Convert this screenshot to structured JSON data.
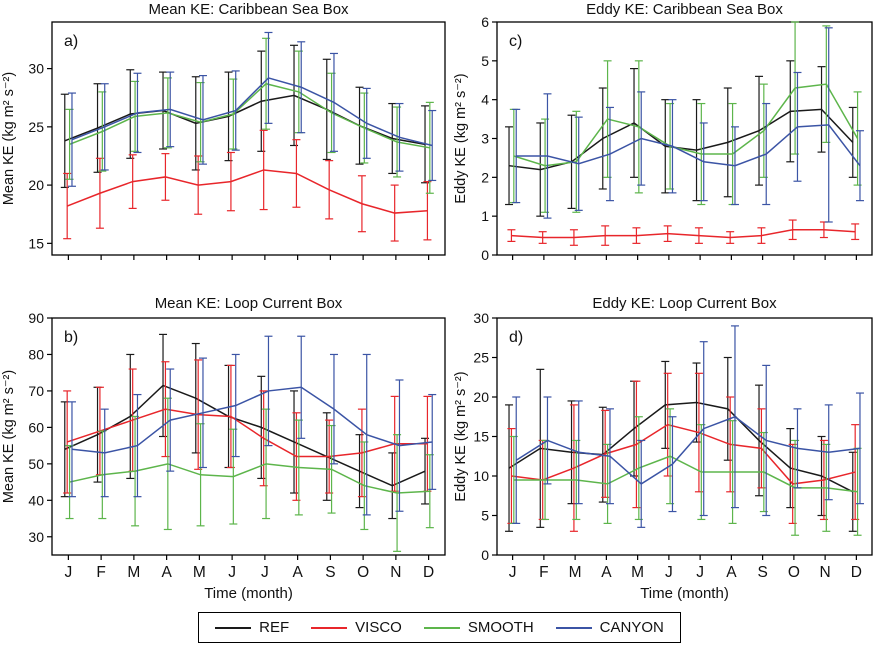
{
  "figure": {
    "xlabel": "Time (month)",
    "months": [
      "J",
      "F",
      "M",
      "A",
      "M",
      "J",
      "J",
      "A",
      "S",
      "O",
      "N",
      "D"
    ],
    "legend": [
      {
        "label": "REF",
        "color": "#1a1a1a"
      },
      {
        "label": "VISCO",
        "color": "#e8262b"
      },
      {
        "label": "SMOOTH",
        "color": "#5db54b"
      },
      {
        "label": "CANYON",
        "color": "#3b54a5"
      }
    ]
  },
  "chart_data": [
    {
      "type": "line",
      "panel_label": "a)",
      "title": "Mean KE: Caribbean Sea Box",
      "ylabel": "Mean KE (kg m² s⁻²)",
      "xlabel": "Time (month)",
      "categories": [
        "J",
        "F",
        "M",
        "A",
        "M",
        "J",
        "J",
        "A",
        "S",
        "O",
        "N",
        "D"
      ],
      "ylim": [
        14,
        34
      ],
      "yticks": [
        15,
        20,
        25,
        30
      ],
      "grid": false,
      "legend_position": "bottom",
      "series": [
        {
          "name": "REF",
          "color": "#1a1a1a",
          "values": [
            23.8,
            24.9,
            26.1,
            26.4,
            25.3,
            25.9,
            27.2,
            27.7,
            26.5,
            25.1,
            24.0,
            23.5
          ],
          "err": [
            4.0,
            3.8,
            3.8,
            3.3,
            4.0,
            3.8,
            4.3,
            4.3,
            4.3,
            3.3,
            3.0,
            3.3
          ]
        },
        {
          "name": "VISCO",
          "color": "#e8262b",
          "values": [
            18.2,
            19.3,
            20.3,
            20.7,
            20.0,
            20.3,
            21.3,
            21.0,
            19.6,
            18.4,
            17.6,
            17.8
          ],
          "err": [
            2.8,
            3.0,
            2.3,
            2.0,
            2.5,
            2.5,
            3.4,
            2.9,
            2.5,
            2.4,
            2.4,
            2.5
          ]
        },
        {
          "name": "SMOOTH",
          "color": "#5db54b",
          "values": [
            23.5,
            24.6,
            25.9,
            26.2,
            25.4,
            26.1,
            28.7,
            28.0,
            26.2,
            24.9,
            23.7,
            23.2
          ],
          "err": [
            3.0,
            3.4,
            3.0,
            3.0,
            3.4,
            3.0,
            3.9,
            3.5,
            3.4,
            3.0,
            3.0,
            3.9
          ]
        },
        {
          "name": "CANYON",
          "color": "#3b54a5",
          "values": [
            23.9,
            25.0,
            26.2,
            26.5,
            25.6,
            26.4,
            29.2,
            28.4,
            27.1,
            25.3,
            24.1,
            23.4
          ],
          "err": [
            4.0,
            3.7,
            3.4,
            3.2,
            3.8,
            3.4,
            3.9,
            3.9,
            4.2,
            3.0,
            2.9,
            3.0
          ]
        }
      ]
    },
    {
      "type": "line",
      "panel_label": "c)",
      "title": "Eddy KE: Caribbean Sea Box",
      "ylabel": "Eddy KE (kg m² s⁻²)",
      "xlabel": "Time (month)",
      "categories": [
        "J",
        "F",
        "M",
        "A",
        "M",
        "J",
        "J",
        "A",
        "S",
        "O",
        "N",
        "D"
      ],
      "ylim": [
        0,
        6
      ],
      "yticks": [
        0,
        1,
        2,
        3,
        4,
        5,
        6
      ],
      "grid": false,
      "legend_position": "bottom",
      "series": [
        {
          "name": "REF",
          "color": "#1a1a1a",
          "values": [
            2.3,
            2.2,
            2.4,
            3.0,
            3.4,
            2.8,
            2.7,
            2.9,
            3.2,
            3.7,
            3.75,
            2.9
          ],
          "err": [
            1.0,
            1.2,
            1.2,
            1.3,
            1.4,
            1.2,
            1.3,
            1.4,
            1.4,
            1.3,
            1.1,
            0.9
          ]
        },
        {
          "name": "VISCO",
          "color": "#e8262b",
          "values": [
            0.5,
            0.45,
            0.45,
            0.5,
            0.5,
            0.55,
            0.5,
            0.45,
            0.5,
            0.65,
            0.65,
            0.6
          ],
          "err": [
            0.15,
            0.15,
            0.2,
            0.25,
            0.2,
            0.2,
            0.2,
            0.15,
            0.2,
            0.25,
            0.2,
            0.2
          ]
        },
        {
          "name": "SMOOTH",
          "color": "#5db54b",
          "values": [
            2.55,
            2.3,
            2.4,
            3.5,
            3.3,
            2.8,
            2.6,
            2.6,
            3.2,
            4.3,
            4.4,
            3.0
          ],
          "err": [
            1.2,
            1.2,
            1.3,
            1.5,
            1.7,
            1.1,
            1.3,
            1.3,
            1.2,
            1.7,
            1.5,
            1.2
          ]
        },
        {
          "name": "CANYON",
          "color": "#3b54a5",
          "values": [
            2.55,
            2.55,
            2.35,
            2.6,
            3.0,
            2.8,
            2.4,
            2.3,
            2.6,
            3.3,
            3.35,
            2.3
          ],
          "err": [
            1.2,
            1.6,
            1.2,
            1.2,
            1.2,
            1.2,
            1.0,
            1.0,
            1.3,
            1.4,
            2.5,
            0.9
          ]
        }
      ]
    },
    {
      "type": "line",
      "panel_label": "b)",
      "title": "Mean KE: Loop Current Box",
      "ylabel": "Mean KE (kg m² s⁻²)",
      "xlabel": "Time (month)",
      "categories": [
        "J",
        "F",
        "M",
        "A",
        "M",
        "J",
        "J",
        "A",
        "S",
        "O",
        "N",
        "D"
      ],
      "ylim": [
        25,
        90
      ],
      "yticks": [
        30,
        40,
        50,
        60,
        70,
        80,
        90
      ],
      "grid": false,
      "legend_position": "bottom",
      "series": [
        {
          "name": "REF",
          "color": "#1a1a1a",
          "values": [
            54,
            58,
            63,
            71.5,
            68,
            63,
            60,
            56,
            52,
            48,
            44,
            48
          ],
          "err": [
            13,
            13,
            17,
            14,
            15,
            14,
            14,
            14,
            12,
            10,
            9,
            9
          ]
        },
        {
          "name": "VISCO",
          "color": "#e8262b",
          "values": [
            56,
            59,
            62,
            65,
            63.5,
            63,
            57,
            52,
            52,
            53,
            55.5,
            55.5
          ],
          "err": [
            14,
            12,
            14,
            13,
            15,
            14,
            13,
            12,
            10,
            12,
            13,
            13
          ]
        },
        {
          "name": "SMOOTH",
          "color": "#5db54b",
          "values": [
            45,
            47,
            48,
            50,
            47,
            46.5,
            50,
            49,
            48.5,
            44,
            42,
            42.5
          ],
          "err": [
            10,
            12,
            15,
            18,
            14,
            13,
            15,
            13,
            12,
            12,
            16,
            10
          ]
        },
        {
          "name": "CANYON",
          "color": "#3b54a5",
          "values": [
            54,
            53,
            55,
            62,
            64,
            66,
            70,
            71,
            65,
            58,
            55,
            56
          ],
          "err": [
            13,
            12,
            14,
            14,
            15,
            14,
            15,
            14,
            15,
            22,
            18,
            13
          ]
        }
      ]
    },
    {
      "type": "line",
      "panel_label": "d)",
      "title": "Eddy KE: Loop Current Box",
      "ylabel": "Eddy KE (kg m² s⁻²)",
      "xlabel": "Time (month)",
      "categories": [
        "J",
        "F",
        "M",
        "A",
        "M",
        "J",
        "J",
        "A",
        "S",
        "O",
        "N",
        "D"
      ],
      "ylim": [
        0,
        30
      ],
      "yticks": [
        0,
        5,
        10,
        15,
        20,
        25,
        30
      ],
      "grid": false,
      "legend_position": "bottom",
      "series": [
        {
          "name": "REF",
          "color": "#1a1a1a",
          "values": [
            11,
            13.5,
            13,
            12.7,
            16,
            19,
            19.3,
            18.5,
            14.5,
            11,
            10,
            8
          ],
          "err": [
            8,
            10,
            6.5,
            6,
            6,
            5.5,
            5,
            6.5,
            7,
            5,
            5,
            5
          ]
        },
        {
          "name": "VISCO",
          "color": "#e8262b",
          "values": [
            10,
            9.5,
            11,
            12.8,
            14,
            16.5,
            15.5,
            14,
            13.5,
            9,
            9.5,
            10.5
          ],
          "err": [
            6,
            5,
            8,
            5.5,
            8,
            6.5,
            7.5,
            6,
            5,
            5,
            5,
            6
          ]
        },
        {
          "name": "SMOOTH",
          "color": "#5db54b",
          "values": [
            9.5,
            9.5,
            9.5,
            9,
            11,
            12.5,
            10.5,
            10.5,
            10.5,
            8.5,
            8.5,
            8
          ],
          "err": [
            5.5,
            5,
            5,
            5,
            6.5,
            6,
            6,
            6.5,
            5,
            6,
            5.5,
            5.5
          ]
        },
        {
          "name": "CANYON",
          "color": "#3b54a5",
          "values": [
            12,
            14.5,
            13,
            12.5,
            9,
            11.5,
            16,
            17.5,
            14.5,
            13.5,
            13,
            13.5
          ],
          "err": [
            8,
            5.5,
            6.5,
            6,
            5.5,
            6,
            11,
            11.5,
            9.5,
            5,
            6,
            7
          ]
        }
      ]
    }
  ]
}
